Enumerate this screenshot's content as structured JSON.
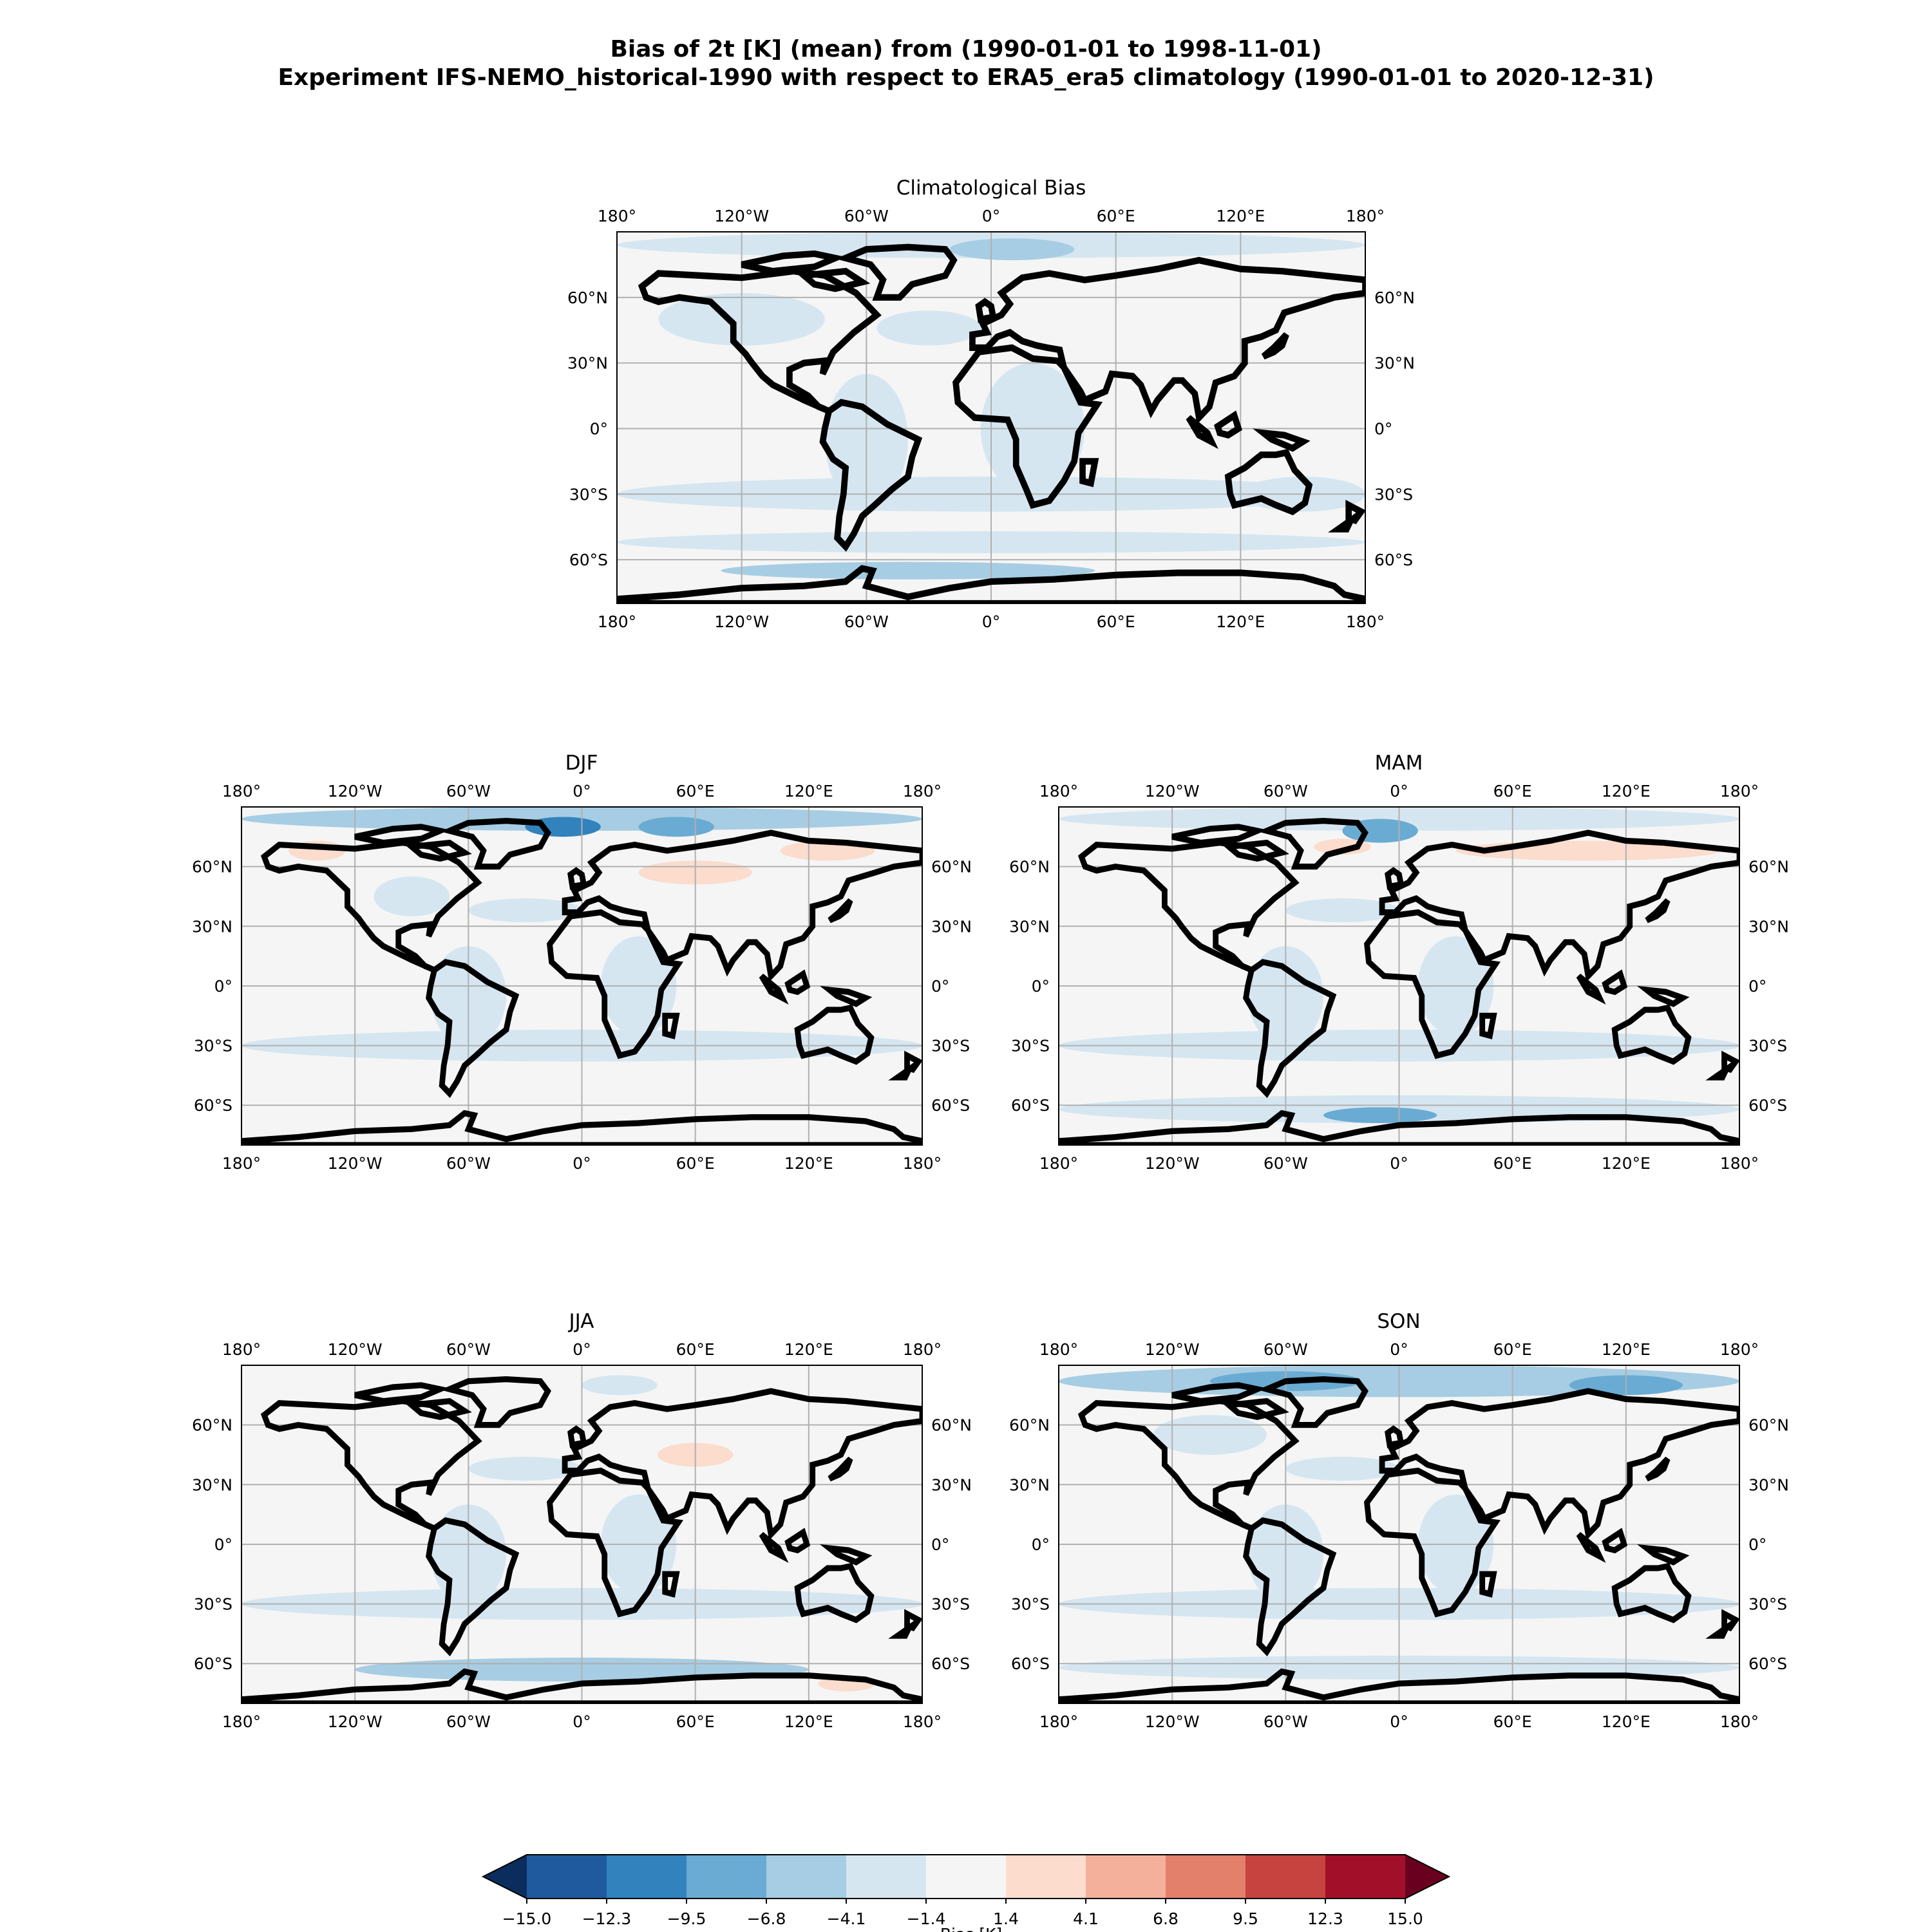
{
  "figure": {
    "title_line1": "Bias of 2t [K] (mean) from (1990-01-01 to 1998-11-01)",
    "title_line2": "Experiment IFS-NEMO_historical-1990 with respect to ERA5_era5 climatology (1990-01-01 to 2020-12-31)"
  },
  "panels": [
    {
      "id": "climatological",
      "title": "Climatological Bias"
    },
    {
      "id": "djf",
      "title": "DJF"
    },
    {
      "id": "mam",
      "title": "MAM"
    },
    {
      "id": "jja",
      "title": "JJA"
    },
    {
      "id": "son",
      "title": "SON"
    }
  ],
  "axes": {
    "lon_ticks": [
      "180°",
      "120°W",
      "60°W",
      "0°",
      "60°E",
      "120°E",
      "180°"
    ],
    "lat_ticks": [
      "60°N",
      "30°N",
      "0°",
      "30°S",
      "60°S"
    ],
    "lon_values": [
      -180,
      -120,
      -60,
      0,
      60,
      120,
      180
    ],
    "lat_values": [
      60,
      30,
      0,
      -30,
      -60
    ],
    "lat_range": [
      -80,
      90
    ],
    "lon_range": [
      -180,
      180
    ],
    "grid": true
  },
  "colorbar": {
    "label": "Bias [K]",
    "levels": [
      -15.0,
      -12.3,
      -9.5,
      -6.8,
      -4.1,
      -1.4,
      1.4,
      4.1,
      6.8,
      9.5,
      12.3,
      15.0
    ],
    "tick_labels": [
      "−15.0",
      "−12.3",
      "−9.5",
      "−6.8",
      "−4.1",
      "−1.4",
      "1.4",
      "4.1",
      "6.8",
      "9.5",
      "12.3",
      "15.0"
    ],
    "colors": [
      "#1f5a9e",
      "#3282bd",
      "#6aabd3",
      "#a6cde3",
      "#d5e6f1",
      "#f5f5f5",
      "#fbdccd",
      "#f4b09a",
      "#e3806b",
      "#c6433f",
      "#a11028"
    ],
    "under_color": "#0a2d5e",
    "over_color": "#6a0020",
    "extend": "both",
    "orientation": "horizontal"
  },
  "colors": {
    "land_outline": "#000000",
    "gridline": "#b0b0b0",
    "background_field": "#f5f5f5"
  }
}
